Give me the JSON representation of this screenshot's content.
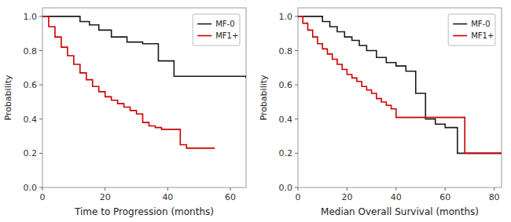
{
  "chart_data": [
    {
      "type": "step",
      "xlabel": "Time to Progression (months)",
      "ylabel": "Probability",
      "xlim": [
        0,
        65
      ],
      "ylim": [
        0.0,
        1.05
      ],
      "xticks": [
        0,
        20,
        40,
        60
      ],
      "yticks": [
        {
          "value": 0.0,
          "label": "0.0"
        },
        0.2,
        0.4,
        0.6,
        0.8,
        {
          "value": 1.0,
          "label": "1.0"
        }
      ],
      "grid": false,
      "legend": "upper-right",
      "series": [
        {
          "name": "MF-0",
          "color": "#1a1a1a",
          "x": [
            0,
            9,
            12,
            15,
            18,
            22,
            27,
            32,
            37,
            42,
            65
          ],
          "values": [
            1.0,
            1.0,
            0.97,
            0.95,
            0.92,
            0.88,
            0.85,
            0.84,
            0.74,
            0.65,
            0.64
          ]
        },
        {
          "name": "MF1+",
          "color": "#cc0000",
          "x": [
            0,
            2,
            4,
            6,
            8,
            10,
            12,
            14,
            16,
            18,
            20,
            22,
            24,
            26,
            28,
            30,
            32,
            34,
            36,
            38,
            40,
            44,
            46,
            55
          ],
          "values": [
            1.0,
            0.94,
            0.88,
            0.82,
            0.77,
            0.72,
            0.67,
            0.63,
            0.59,
            0.56,
            0.53,
            0.51,
            0.49,
            0.47,
            0.45,
            0.43,
            0.38,
            0.36,
            0.35,
            0.34,
            0.34,
            0.25,
            0.23,
            0.23
          ]
        }
      ]
    },
    {
      "type": "step",
      "xlabel": "Median Overall Survival (months)",
      "ylabel": "Probability",
      "xlim": [
        0,
        83
      ],
      "ylim": [
        0.0,
        1.05
      ],
      "xticks": [
        0,
        20,
        40,
        60,
        80
      ],
      "yticks": [
        {
          "value": 0.0,
          "label": "0.0"
        },
        0.2,
        0.4,
        0.6,
        0.8,
        {
          "value": 1.0,
          "label": "1.0"
        }
      ],
      "grid": false,
      "legend": "upper-right",
      "series": [
        {
          "name": "MF-0",
          "color": "#1a1a1a",
          "x": [
            0,
            5,
            10,
            13,
            16,
            19,
            22,
            25,
            28,
            32,
            36,
            40,
            44,
            48,
            52,
            56,
            60,
            65,
            83
          ],
          "values": [
            1.0,
            1.0,
            0.97,
            0.94,
            0.91,
            0.88,
            0.86,
            0.83,
            0.8,
            0.76,
            0.73,
            0.71,
            0.68,
            0.55,
            0.4,
            0.37,
            0.35,
            0.2,
            0.2
          ]
        },
        {
          "name": "MF1+",
          "color": "#cc0000",
          "x": [
            0,
            2,
            4,
            6,
            8,
            10,
            12,
            14,
            16,
            18,
            20,
            22,
            24,
            26,
            28,
            30,
            32,
            34,
            36,
            38,
            40,
            42,
            44,
            46,
            48,
            68,
            83
          ],
          "values": [
            1.0,
            0.96,
            0.92,
            0.88,
            0.84,
            0.81,
            0.78,
            0.75,
            0.72,
            0.69,
            0.66,
            0.64,
            0.62,
            0.59,
            0.57,
            0.55,
            0.52,
            0.5,
            0.48,
            0.46,
            0.41,
            0.41,
            0.41,
            0.41,
            0.41,
            0.2,
            0.2
          ]
        }
      ]
    }
  ]
}
